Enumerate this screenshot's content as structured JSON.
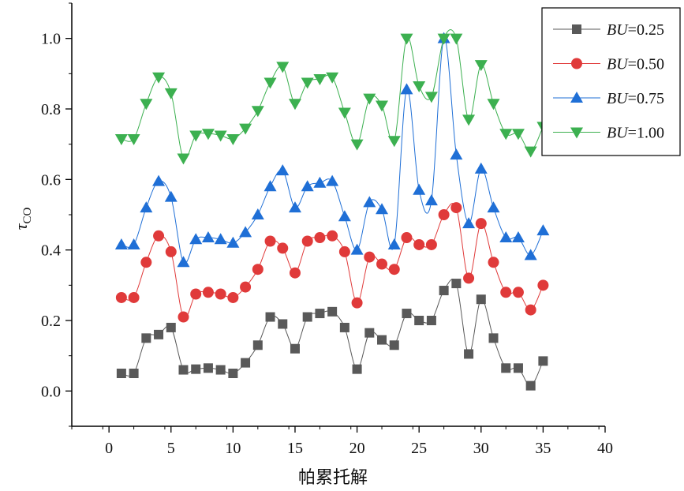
{
  "chart_data": {
    "type": "line",
    "title": "",
    "xlabel": "帕累托解",
    "ylabel": "τ",
    "ylabel_subscript": "CO",
    "xlim": [
      -3,
      40
    ],
    "ylim": [
      -0.1,
      1.1
    ],
    "xticks": [
      0,
      5,
      10,
      15,
      20,
      25,
      30,
      35,
      40
    ],
    "yticks": [
      0.0,
      0.2,
      0.4,
      0.6,
      0.8,
      1.0
    ],
    "xtick_labels": [
      "0",
      "5",
      "10",
      "15",
      "20",
      "25",
      "30",
      "35",
      "40"
    ],
    "ytick_labels": [
      "0.0",
      "0.2",
      "0.4",
      "0.6",
      "0.8",
      "1.0"
    ],
    "grid": false,
    "legend_position": "top-right",
    "x": [
      1,
      2,
      3,
      4,
      5,
      6,
      7,
      8,
      9,
      10,
      11,
      12,
      13,
      14,
      15,
      16,
      17,
      18,
      19,
      20,
      21,
      22,
      23,
      24,
      25,
      26,
      27,
      28,
      29,
      30,
      31,
      32,
      33,
      34,
      35
    ],
    "series": [
      {
        "name": "BU=0.25",
        "label_var": "BU",
        "label_value": "=0.25",
        "color": "#595959",
        "marker": "square",
        "values": [
          0.05,
          0.05,
          0.15,
          0.16,
          0.18,
          0.06,
          0.062,
          0.065,
          0.06,
          0.05,
          0.08,
          0.13,
          0.21,
          0.19,
          0.12,
          0.21,
          0.22,
          0.225,
          0.18,
          0.062,
          0.165,
          0.145,
          0.13,
          0.22,
          0.2,
          0.2,
          0.285,
          0.305,
          0.105,
          0.26,
          0.15,
          0.065,
          0.065,
          0.015,
          0.085
        ]
      },
      {
        "name": "BU=0.50",
        "label_var": "BU",
        "label_value": "=0.50",
        "color": "#e03a3a",
        "marker": "circle",
        "values": [
          0.265,
          0.265,
          0.365,
          0.44,
          0.395,
          0.21,
          0.275,
          0.28,
          0.275,
          0.265,
          0.295,
          0.345,
          0.425,
          0.405,
          0.335,
          0.425,
          0.435,
          0.44,
          0.395,
          0.25,
          0.38,
          0.36,
          0.345,
          0.435,
          0.415,
          0.415,
          0.5,
          0.52,
          0.32,
          0.475,
          0.365,
          0.28,
          0.28,
          0.23,
          0.3
        ]
      },
      {
        "name": "BU=0.75",
        "label_var": "BU",
        "label_value": "=0.75",
        "color": "#1f6fd6",
        "marker": "triangle-up",
        "values": [
          0.415,
          0.415,
          0.52,
          0.595,
          0.55,
          0.365,
          0.43,
          0.435,
          0.43,
          0.42,
          0.45,
          0.5,
          0.58,
          0.625,
          0.52,
          0.58,
          0.59,
          0.595,
          0.495,
          0.4,
          0.535,
          0.515,
          0.415,
          0.855,
          0.57,
          0.54,
          1.0,
          0.67,
          0.475,
          0.63,
          0.52,
          0.435,
          0.435,
          0.385,
          0.455
        ]
      },
      {
        "name": "BU=1.00",
        "label_var": "BU",
        "label_value": "=1.00",
        "color": "#3cb050",
        "marker": "triangle-down",
        "values": [
          0.715,
          0.715,
          0.815,
          0.89,
          0.845,
          0.66,
          0.725,
          0.73,
          0.725,
          0.715,
          0.745,
          0.795,
          0.875,
          0.92,
          0.815,
          0.875,
          0.885,
          0.89,
          0.79,
          0.7,
          0.83,
          0.81,
          0.71,
          1.0,
          0.865,
          0.835,
          1.0,
          1.0,
          0.77,
          0.925,
          0.815,
          0.73,
          0.73,
          0.68,
          0.75
        ]
      }
    ]
  }
}
